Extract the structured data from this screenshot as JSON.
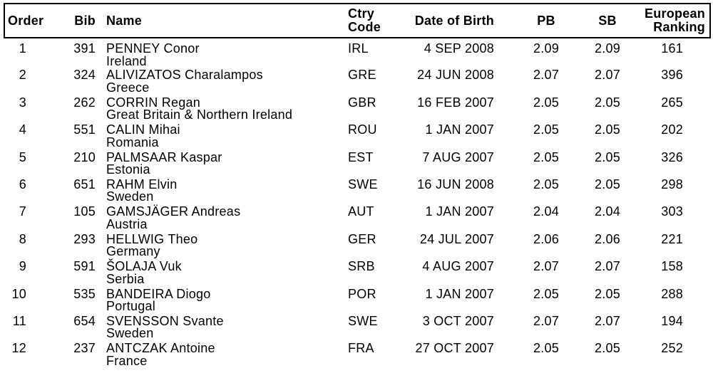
{
  "colors": {
    "text": "#000000",
    "border": "#000000",
    "background": "#ffffff"
  },
  "table": {
    "headers": [
      {
        "id": "order",
        "lines": [
          "Order"
        ]
      },
      {
        "id": "bib",
        "lines": [
          "Bib"
        ]
      },
      {
        "id": "name",
        "lines": [
          "Name"
        ]
      },
      {
        "id": "ctry",
        "lines": [
          "Ctry",
          "Code"
        ]
      },
      {
        "id": "dob",
        "lines": [
          "Date of Birth"
        ]
      },
      {
        "id": "pb",
        "lines": [
          "PB"
        ]
      },
      {
        "id": "sb",
        "lines": [
          "SB"
        ]
      },
      {
        "id": "ranking",
        "lines": [
          "European",
          "Ranking"
        ]
      }
    ],
    "rows": [
      {
        "order": "1",
        "bib": "391",
        "name": "PENNEY Conor",
        "country": "Ireland",
        "ctry": "IRL",
        "dob": "4 SEP 2008",
        "pb": "2.09",
        "sb": "2.09",
        "ranking": "161"
      },
      {
        "order": "2",
        "bib": "324",
        "name": "ALIVIZATOS Charalampos",
        "country": "Greece",
        "ctry": "GRE",
        "dob": "24 JUN 2008",
        "pb": "2.07",
        "sb": "2.07",
        "ranking": "396"
      },
      {
        "order": "3",
        "bib": "262",
        "name": "CORRIN Regan",
        "country": "Great Britain & Northern Ireland",
        "ctry": "GBR",
        "dob": "16 FEB 2007",
        "pb": "2.05",
        "sb": "2.05",
        "ranking": "265"
      },
      {
        "order": "4",
        "bib": "551",
        "name": "CALIN Mihai",
        "country": "Romania",
        "ctry": "ROU",
        "dob": "1 JAN 2007",
        "pb": "2.05",
        "sb": "2.05",
        "ranking": "202"
      },
      {
        "order": "5",
        "bib": "210",
        "name": "PALMSAAR Kaspar",
        "country": "Estonia",
        "ctry": "EST",
        "dob": "7 AUG 2007",
        "pb": "2.05",
        "sb": "2.05",
        "ranking": "326"
      },
      {
        "order": "6",
        "bib": "651",
        "name": "RAHM Elvin",
        "country": "Sweden",
        "ctry": "SWE",
        "dob": "16 JUN 2008",
        "pb": "2.05",
        "sb": "2.05",
        "ranking": "298"
      },
      {
        "order": "7",
        "bib": "105",
        "name": "GAMSJÄGER Andreas",
        "country": "Austria",
        "ctry": "AUT",
        "dob": "1 JAN 2007",
        "pb": "2.04",
        "sb": "2.04",
        "ranking": "303"
      },
      {
        "order": "8",
        "bib": "293",
        "name": "HELLWIG Theo",
        "country": "Germany",
        "ctry": "GER",
        "dob": "24 JUL 2007",
        "pb": "2.06",
        "sb": "2.06",
        "ranking": "221"
      },
      {
        "order": "9",
        "bib": "591",
        "name": "ŠOLAJA Vuk",
        "country": "Serbia",
        "ctry": "SRB",
        "dob": "4 AUG 2007",
        "pb": "2.07",
        "sb": "2.07",
        "ranking": "158"
      },
      {
        "order": "10",
        "bib": "535",
        "name": "BANDEIRA Diogo",
        "country": "Portugal",
        "ctry": "POR",
        "dob": "1 JAN 2007",
        "pb": "2.05",
        "sb": "2.05",
        "ranking": "288"
      },
      {
        "order": "11",
        "bib": "654",
        "name": "SVENSSON Svante",
        "country": "Sweden",
        "ctry": "SWE",
        "dob": "3 OCT 2007",
        "pb": "2.07",
        "sb": "2.07",
        "ranking": "194"
      },
      {
        "order": "12",
        "bib": "237",
        "name": "ANTCZAK Antoine",
        "country": "France",
        "ctry": "FRA",
        "dob": "27 OCT 2007",
        "pb": "2.05",
        "sb": "2.05",
        "ranking": "252"
      }
    ]
  }
}
